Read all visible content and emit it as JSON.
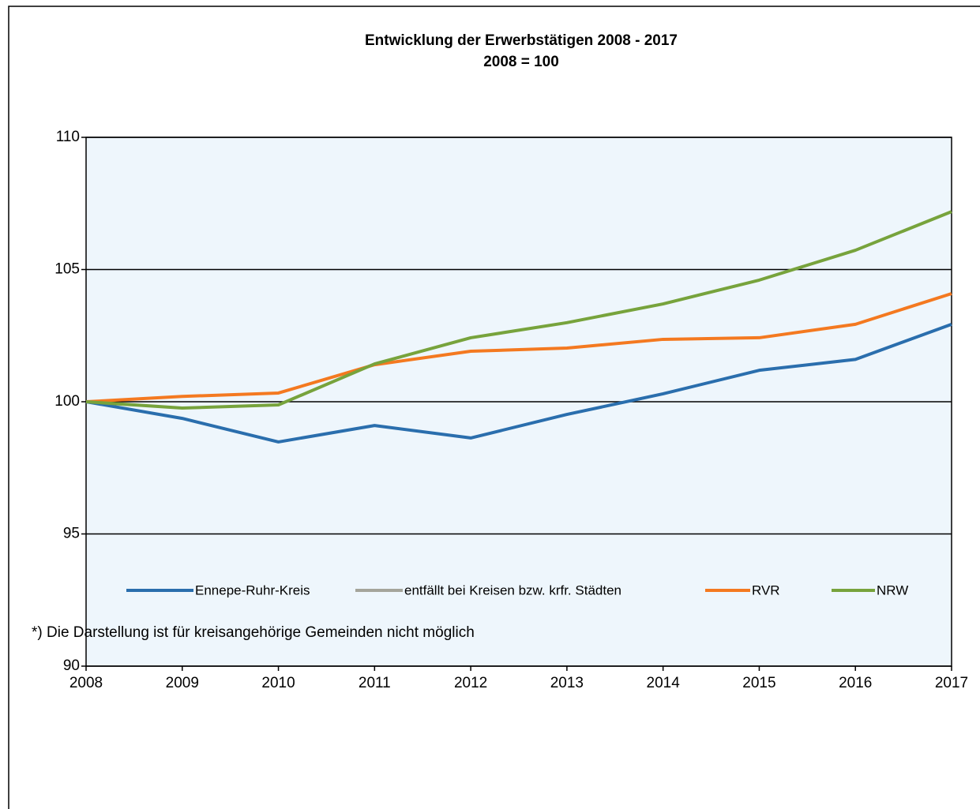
{
  "chart_data": {
    "type": "line",
    "title": "Entwicklung der Erwerbstätigen 2008 - 2017",
    "subtitle": "2008 = 100",
    "x": [
      2008,
      2009,
      2010,
      2011,
      2012,
      2013,
      2014,
      2015,
      2016,
      2017
    ],
    "xlim": [
      2008,
      2017
    ],
    "xticks": [
      2008,
      2009,
      2010,
      2011,
      2012,
      2013,
      2014,
      2015,
      2016,
      2017
    ],
    "ylim": [
      90,
      110
    ],
    "yticks": [
      90,
      95,
      100,
      105,
      110
    ],
    "grid": true,
    "series": [
      {
        "name": "Ennepe-Ruhr-Kreis",
        "color": "#2a6ead",
        "values": [
          100,
          99.37,
          98.48,
          99.1,
          98.63,
          99.52,
          100.3,
          101.19,
          101.6,
          102.93
        ]
      },
      {
        "name": "entfällt bei Kreisen bzw. krfr. Städten",
        "color": "#a5a59b",
        "values": [
          null,
          null,
          null,
          null,
          null,
          null,
          null,
          null,
          null,
          null
        ]
      },
      {
        "name": "RVR",
        "color": "#f47920",
        "values": [
          100,
          100.2,
          100.33,
          101.4,
          101.91,
          102.03,
          102.36,
          102.42,
          102.93,
          104.09
        ]
      },
      {
        "name": "NRW",
        "color": "#77a33c",
        "values": [
          100,
          99.76,
          99.88,
          101.43,
          102.42,
          102.99,
          103.7,
          104.6,
          105.73,
          107.19
        ]
      }
    ],
    "note": "*) Die Darstellung ist für kreisangehörige Gemeinden nicht möglich"
  }
}
